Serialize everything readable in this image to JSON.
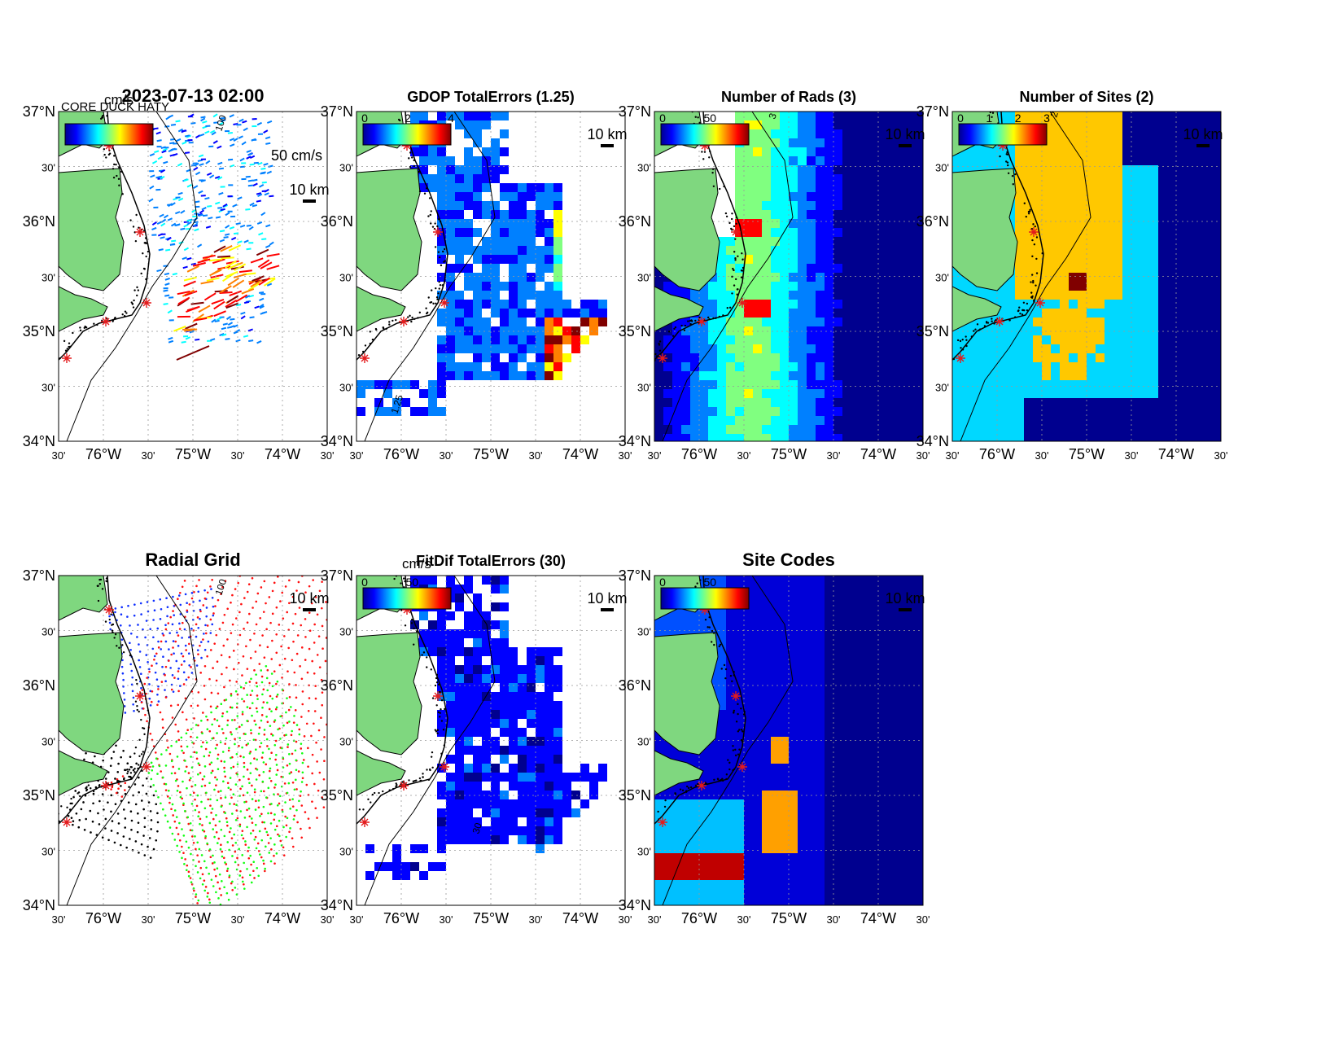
{
  "header": {
    "timestamp": "2023-07-13 02:00",
    "units": "cm/s",
    "vector_scale_label": "50 cm/s",
    "overlap_text": "CORE DUCK HATY"
  },
  "axes": {
    "lat_labels": [
      "37°N",
      "30'",
      "36°N",
      "30'",
      "35°N",
      "30'",
      "34°N"
    ],
    "lon_labels": [
      "30'",
      "76°W",
      "30'",
      "75°W",
      "30'",
      "74°W",
      "30'"
    ]
  },
  "scale_bar_label": "10 km",
  "panels": [
    {
      "id": "total-vectors",
      "title": "2023-07-13 02:00",
      "colorbar": {
        "unit": "cm/s",
        "ticks": []
      },
      "contour_label": "100"
    },
    {
      "id": "gdop-total-errors",
      "title": "GDOP TotalErrors (1.25)",
      "colorbar": {
        "unit": "",
        "ticks": [
          "0",
          "2",
          "4"
        ]
      },
      "contour_label": "1.25"
    },
    {
      "id": "number-of-rads",
      "title": "Number of Rads (3)",
      "colorbar": {
        "unit": "",
        "ticks": [
          "0",
          "50"
        ]
      },
      "contour_label": "3"
    },
    {
      "id": "number-of-sites",
      "title": "Number of Sites (2)",
      "colorbar": {
        "unit": "",
        "ticks": [
          "0",
          "1",
          "2",
          "3"
        ]
      },
      "contour_label": "2"
    },
    {
      "id": "radial-grid",
      "title": "Radial Grid",
      "colorbar": null,
      "contour_label": "100"
    },
    {
      "id": "fitdif-total-errors",
      "title": "FitDif TotalErrors (30)",
      "colorbar": {
        "unit": "cm/s",
        "ticks": [
          "0",
          "50"
        ]
      },
      "contour_label": "30"
    },
    {
      "id": "site-codes",
      "title": "Site Codes",
      "colorbar": {
        "unit": "",
        "ticks": [
          "0",
          "50"
        ]
      },
      "contour_label": ""
    }
  ],
  "colors": {
    "land": "#7fd77f",
    "site_marker": "#e31a1c",
    "jet": [
      "#00008f",
      "#0000ff",
      "#0080ff",
      "#00ffff",
      "#80ff80",
      "#ffff00",
      "#ff8000",
      "#ff0000",
      "#800000"
    ]
  }
}
